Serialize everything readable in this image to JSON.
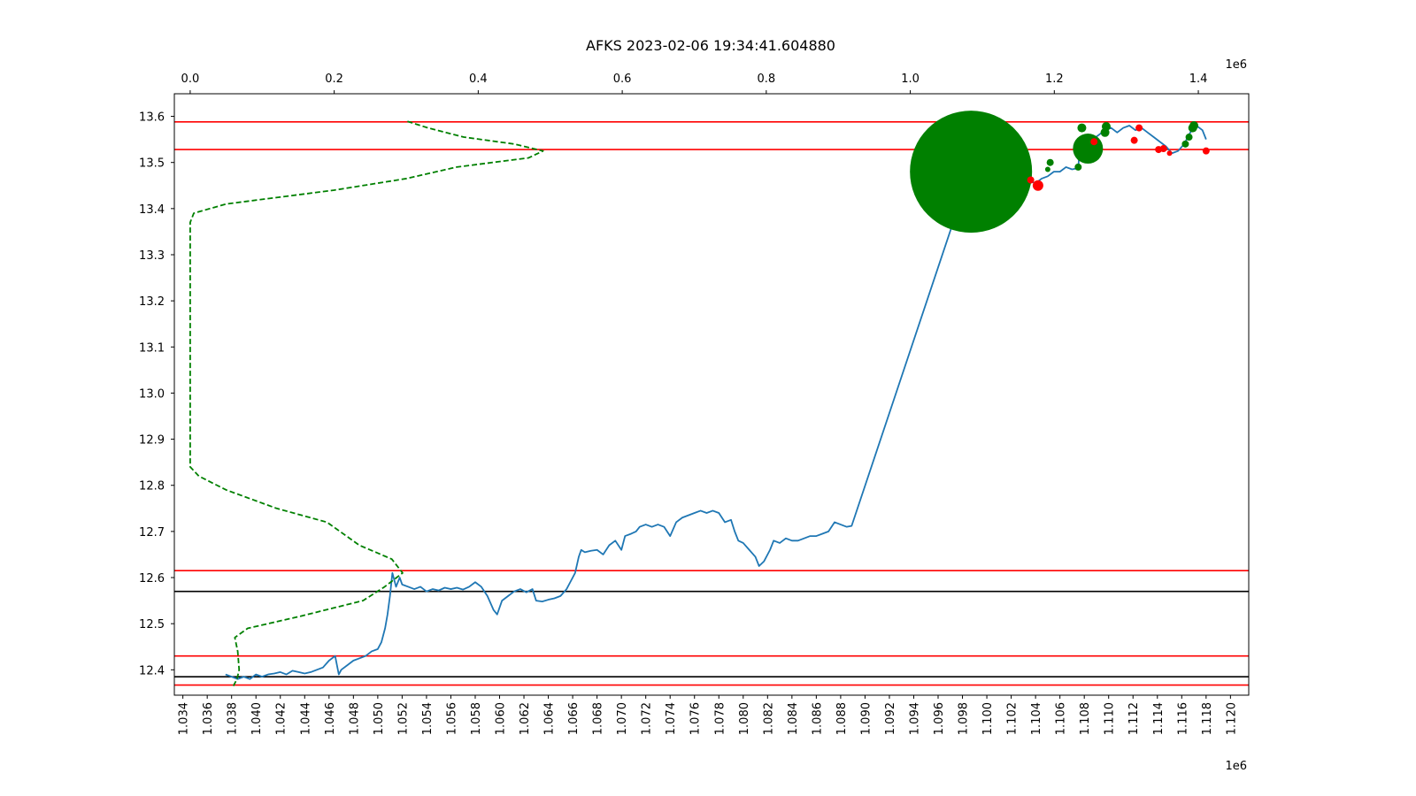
{
  "chart_data": {
    "type": "line",
    "title": "AFKS 2023-02-06 19:34:41.604880",
    "xlabel": "",
    "ylabel": "",
    "x_bottom": {
      "range": [
        1.0333,
        1.1215
      ],
      "ticks": [
        "1.034",
        "1.036",
        "1.038",
        "1.040",
        "1.042",
        "1.044",
        "1.046",
        "1.048",
        "1.050",
        "1.052",
        "1.054",
        "1.056",
        "1.058",
        "1.060",
        "1.062",
        "1.064",
        "1.066",
        "1.068",
        "1.070",
        "1.072",
        "1.074",
        "1.076",
        "1.078",
        "1.080",
        "1.082",
        "1.084",
        "1.086",
        "1.088",
        "1.090",
        "1.092",
        "1.094",
        "1.096",
        "1.098",
        "1.100",
        "1.102",
        "1.104",
        "1.106",
        "1.108",
        "1.110",
        "1.112",
        "1.114",
        "1.116",
        "1.118",
        "1.120"
      ],
      "multiplier": "1e6"
    },
    "x_top": {
      "range": [
        -0.022,
        1.47
      ],
      "ticks": [
        "0.0",
        "0.2",
        "0.4",
        "0.6",
        "0.8",
        "1.0",
        "1.2",
        "1.4"
      ],
      "multiplier": "1e6"
    },
    "y": {
      "range": [
        12.345,
        13.649
      ],
      "ticks": [
        "12.4",
        "12.5",
        "12.6",
        "12.7",
        "12.8",
        "12.9",
        "13.0",
        "13.1",
        "13.2",
        "13.3",
        "13.4",
        "13.5",
        "13.6"
      ]
    },
    "grid": false,
    "series": [
      {
        "kind": "price-line",
        "color": "#1f77b4",
        "points": [
          [
            1.0375,
            12.39
          ],
          [
            1.038,
            12.385
          ],
          [
            1.0385,
            12.38
          ],
          [
            1.039,
            12.385
          ],
          [
            1.0395,
            12.38
          ],
          [
            1.04,
            12.39
          ],
          [
            1.0405,
            12.385
          ],
          [
            1.041,
            12.39
          ],
          [
            1.0415,
            12.392
          ],
          [
            1.042,
            12.395
          ],
          [
            1.0425,
            12.39
          ],
          [
            1.043,
            12.398
          ],
          [
            1.0435,
            12.395
          ],
          [
            1.044,
            12.392
          ],
          [
            1.0445,
            12.395
          ],
          [
            1.045,
            12.4
          ],
          [
            1.0455,
            12.405
          ],
          [
            1.046,
            12.42
          ],
          [
            1.0465,
            12.43
          ],
          [
            1.0468,
            12.39
          ],
          [
            1.047,
            12.4
          ],
          [
            1.0475,
            12.41
          ],
          [
            1.048,
            12.42
          ],
          [
            1.0485,
            12.425
          ],
          [
            1.049,
            12.43
          ],
          [
            1.0495,
            12.44
          ],
          [
            1.05,
            12.445
          ],
          [
            1.0503,
            12.46
          ],
          [
            1.0506,
            12.49
          ],
          [
            1.0508,
            12.52
          ],
          [
            1.051,
            12.56
          ],
          [
            1.0512,
            12.61
          ],
          [
            1.0515,
            12.58
          ],
          [
            1.0518,
            12.6
          ],
          [
            1.052,
            12.585
          ],
          [
            1.0525,
            12.58
          ],
          [
            1.053,
            12.575
          ],
          [
            1.0535,
            12.58
          ],
          [
            1.054,
            12.57
          ],
          [
            1.0545,
            12.575
          ],
          [
            1.055,
            12.572
          ],
          [
            1.0555,
            12.578
          ],
          [
            1.056,
            12.575
          ],
          [
            1.0565,
            12.578
          ],
          [
            1.057,
            12.574
          ],
          [
            1.0575,
            12.58
          ],
          [
            1.058,
            12.59
          ],
          [
            1.0585,
            12.58
          ],
          [
            1.059,
            12.56
          ],
          [
            1.0595,
            12.53
          ],
          [
            1.0598,
            12.52
          ],
          [
            1.0602,
            12.55
          ],
          [
            1.0607,
            12.56
          ],
          [
            1.0612,
            12.57
          ],
          [
            1.0617,
            12.575
          ],
          [
            1.0622,
            12.568
          ],
          [
            1.0627,
            12.575
          ],
          [
            1.063,
            12.55
          ],
          [
            1.0635,
            12.548
          ],
          [
            1.064,
            12.552
          ],
          [
            1.0645,
            12.555
          ],
          [
            1.065,
            12.56
          ],
          [
            1.0655,
            12.575
          ],
          [
            1.0658,
            12.59
          ],
          [
            1.0662,
            12.61
          ],
          [
            1.0665,
            12.645
          ],
          [
            1.0667,
            12.66
          ],
          [
            1.067,
            12.655
          ],
          [
            1.0675,
            12.658
          ],
          [
            1.068,
            12.66
          ],
          [
            1.0685,
            12.65
          ],
          [
            1.069,
            12.67
          ],
          [
            1.0695,
            12.68
          ],
          [
            1.07,
            12.66
          ],
          [
            1.0703,
            12.69
          ],
          [
            1.0708,
            12.695
          ],
          [
            1.0712,
            12.7
          ],
          [
            1.0715,
            12.71
          ],
          [
            1.072,
            12.715
          ],
          [
            1.0725,
            12.71
          ],
          [
            1.073,
            12.715
          ],
          [
            1.0735,
            12.71
          ],
          [
            1.074,
            12.69
          ],
          [
            1.0745,
            12.72
          ],
          [
            1.075,
            12.73
          ],
          [
            1.0755,
            12.735
          ],
          [
            1.076,
            12.74
          ],
          [
            1.0765,
            12.745
          ],
          [
            1.077,
            12.74
          ],
          [
            1.0775,
            12.745
          ],
          [
            1.078,
            12.74
          ],
          [
            1.0785,
            12.72
          ],
          [
            1.079,
            12.725
          ],
          [
            1.0793,
            12.7
          ],
          [
            1.0796,
            12.68
          ],
          [
            1.08,
            12.675
          ],
          [
            1.0805,
            12.66
          ],
          [
            1.081,
            12.645
          ],
          [
            1.0813,
            12.625
          ],
          [
            1.0817,
            12.635
          ],
          [
            1.0822,
            12.66
          ],
          [
            1.0825,
            12.68
          ],
          [
            1.083,
            12.675
          ],
          [
            1.0835,
            12.685
          ],
          [
            1.084,
            12.68
          ],
          [
            1.0845,
            12.68
          ],
          [
            1.085,
            12.685
          ],
          [
            1.0855,
            12.69
          ],
          [
            1.086,
            12.69
          ],
          [
            1.0865,
            12.695
          ],
          [
            1.087,
            12.7
          ],
          [
            1.0875,
            12.72
          ],
          [
            1.088,
            12.715
          ],
          [
            1.0885,
            12.71
          ],
          [
            1.0889,
            12.712
          ],
          [
            1.0985,
            13.47
          ],
          [
            1.099,
            13.48
          ],
          [
            1.0995,
            13.475
          ],
          [
            1.1,
            13.48
          ],
          [
            1.1005,
            13.478
          ],
          [
            1.101,
            13.48
          ],
          [
            1.1015,
            13.475
          ],
          [
            1.102,
            13.47
          ],
          [
            1.1025,
            13.475
          ],
          [
            1.103,
            13.465
          ],
          [
            1.1035,
            13.46
          ],
          [
            1.104,
            13.455
          ],
          [
            1.1045,
            13.465
          ],
          [
            1.105,
            13.47
          ],
          [
            1.1055,
            13.48
          ],
          [
            1.106,
            13.48
          ],
          [
            1.1065,
            13.49
          ],
          [
            1.107,
            13.485
          ],
          [
            1.1075,
            13.488
          ],
          [
            1.1077,
            13.555
          ],
          [
            1.108,
            13.545
          ],
          [
            1.1083,
            13.54
          ],
          [
            1.1087,
            13.55
          ],
          [
            1.1092,
            13.56
          ],
          [
            1.1097,
            13.57
          ],
          [
            1.1102,
            13.575
          ],
          [
            1.1107,
            13.565
          ],
          [
            1.1112,
            13.575
          ],
          [
            1.1117,
            13.58
          ],
          [
            1.1122,
            13.57
          ],
          [
            1.1127,
            13.575
          ],
          [
            1.1132,
            13.565
          ],
          [
            1.1137,
            13.555
          ],
          [
            1.1142,
            13.545
          ],
          [
            1.1147,
            13.535
          ],
          [
            1.1152,
            13.52
          ],
          [
            1.1157,
            13.525
          ],
          [
            1.1162,
            13.54
          ],
          [
            1.1167,
            13.565
          ],
          [
            1.1172,
            13.58
          ],
          [
            1.1177,
            13.57
          ],
          [
            1.118,
            13.55
          ]
        ]
      },
      {
        "kind": "volume-profile",
        "axis": "top",
        "color": "#008000",
        "points": [
          [
            0.06,
            12.365
          ],
          [
            0.065,
            12.38
          ],
          [
            0.068,
            12.4
          ],
          [
            0.066,
            12.44
          ],
          [
            0.062,
            12.47
          ],
          [
            0.08,
            12.49
          ],
          [
            0.15,
            12.515
          ],
          [
            0.24,
            12.55
          ],
          [
            0.27,
            12.58
          ],
          [
            0.295,
            12.61
          ],
          [
            0.28,
            12.64
          ],
          [
            0.235,
            12.67
          ],
          [
            0.19,
            12.72
          ],
          [
            0.12,
            12.75
          ],
          [
            0.05,
            12.79
          ],
          [
            0.012,
            12.82
          ],
          [
            0.0,
            12.84
          ],
          [
            0.0,
            13.37
          ],
          [
            0.005,
            13.39
          ],
          [
            0.05,
            13.41
          ],
          [
            0.2,
            13.44
          ],
          [
            0.3,
            13.465
          ],
          [
            0.37,
            13.49
          ],
          [
            0.47,
            13.51
          ],
          [
            0.49,
            13.525
          ],
          [
            0.45,
            13.54
          ],
          [
            0.38,
            13.555
          ],
          [
            0.33,
            13.575
          ],
          [
            0.3,
            13.59
          ]
        ]
      }
    ],
    "horizontal_lines": [
      {
        "y": 13.588,
        "color": "#ff0000"
      },
      {
        "y": 13.528,
        "color": "#ff0000"
      },
      {
        "y": 12.615,
        "color": "#ff0000"
      },
      {
        "y": 12.57,
        "color": "#000000"
      },
      {
        "y": 12.43,
        "color": "#ff0000"
      },
      {
        "y": 12.385,
        "color": "#000000"
      },
      {
        "y": 12.367,
        "color": "#ff0000"
      }
    ],
    "markers": [
      {
        "x": 1.0987,
        "y": 13.48,
        "r": 69,
        "color": "#008000"
      },
      {
        "x": 1.1083,
        "y": 13.53,
        "r": 17,
        "color": "#008000"
      },
      {
        "x": 1.1078,
        "y": 13.575,
        "r": 5,
        "color": "#008000"
      },
      {
        "x": 1.1075,
        "y": 13.49,
        "r": 4,
        "color": "#008000"
      },
      {
        "x": 1.1052,
        "y": 13.5,
        "r": 4,
        "color": "#008000"
      },
      {
        "x": 1.105,
        "y": 13.485,
        "r": 3,
        "color": "#008000"
      },
      {
        "x": 1.1098,
        "y": 13.578,
        "r": 5,
        "color": "#008000"
      },
      {
        "x": 1.1097,
        "y": 13.565,
        "r": 5,
        "color": "#008000"
      },
      {
        "x": 1.1163,
        "y": 13.54,
        "r": 4,
        "color": "#008000"
      },
      {
        "x": 1.1166,
        "y": 13.555,
        "r": 4,
        "color": "#008000"
      },
      {
        "x": 1.1169,
        "y": 13.575,
        "r": 5,
        "color": "#008000"
      },
      {
        "x": 1.117,
        "y": 13.58,
        "r": 5,
        "color": "#008000"
      },
      {
        "x": 1.1042,
        "y": 13.45,
        "r": 6,
        "color": "#ff0000"
      },
      {
        "x": 1.1036,
        "y": 13.462,
        "r": 4,
        "color": "#ff0000"
      },
      {
        "x": 1.1088,
        "y": 13.545,
        "r": 4,
        "color": "#ff0000"
      },
      {
        "x": 1.1121,
        "y": 13.548,
        "r": 4,
        "color": "#ff0000"
      },
      {
        "x": 1.1125,
        "y": 13.575,
        "r": 4,
        "color": "#ff0000"
      },
      {
        "x": 1.1141,
        "y": 13.528,
        "r": 4,
        "color": "#ff0000"
      },
      {
        "x": 1.1145,
        "y": 13.53,
        "r": 4,
        "color": "#ff0000"
      },
      {
        "x": 1.115,
        "y": 13.52,
        "r": 3,
        "color": "#ff0000"
      },
      {
        "x": 1.118,
        "y": 13.525,
        "r": 4,
        "color": "#ff0000"
      }
    ],
    "colors": {
      "price": "#1f77b4",
      "buy": "#008000",
      "sell": "#ff0000",
      "level": "#ff0000",
      "black_level": "#000000"
    }
  }
}
